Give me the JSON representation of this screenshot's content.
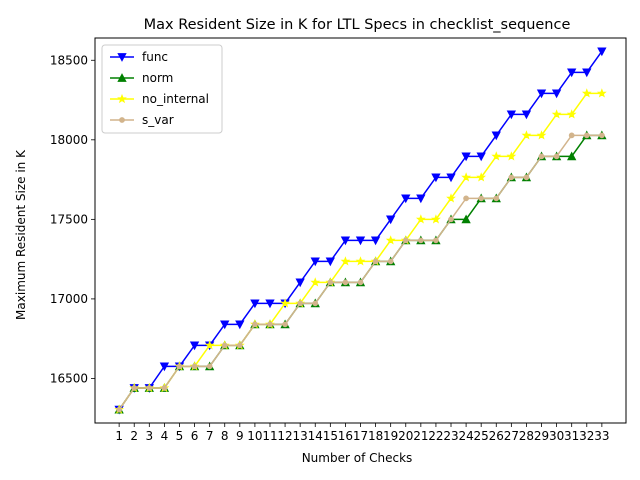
{
  "chart_data": {
    "type": "line",
    "title": "Max Resident Size in K for LTL Specs in checklist_sequence",
    "xlabel": "Number of Checks",
    "ylabel": "Maximum Resident Size in K",
    "x": [
      1,
      2,
      3,
      4,
      5,
      6,
      7,
      8,
      9,
      10,
      11,
      12,
      13,
      14,
      15,
      16,
      17,
      18,
      19,
      20,
      21,
      22,
      23,
      24,
      25,
      26,
      27,
      28,
      29,
      30,
      31,
      32,
      33
    ],
    "xlim": [
      -0.6,
      34.6
    ],
    "ylim": [
      16220,
      18640
    ],
    "yticks": [
      16500,
      17000,
      17500,
      18000,
      18500
    ],
    "grid": false,
    "legend": "top-left",
    "series": [
      {
        "name": "func",
        "color": "#0000ff",
        "marker": "triangle-down",
        "values": [
          16304,
          16440,
          16440,
          16576,
          16576,
          16708,
          16708,
          16840,
          16840,
          16972,
          16972,
          16972,
          17104,
          17236,
          17236,
          17368,
          17368,
          17368,
          17500,
          17632,
          17632,
          17764,
          17764,
          17896,
          17896,
          18028,
          18160,
          18160,
          18292,
          18292,
          18424,
          18424,
          18556
        ]
      },
      {
        "name": "norm",
        "color": "#008000",
        "marker": "triangle-up",
        "values": [
          16304,
          16440,
          16440,
          16440,
          16576,
          16576,
          16576,
          16708,
          16708,
          16840,
          16840,
          16840,
          16972,
          16972,
          17104,
          17104,
          17104,
          17236,
          17236,
          17368,
          17368,
          17368,
          17500,
          17500,
          17632,
          17632,
          17764,
          17764,
          17896,
          17896,
          17896,
          18028,
          18028
        ]
      },
      {
        "name": "no_internal",
        "color": "#ffff00",
        "marker": "star",
        "values": [
          16304,
          16440,
          16440,
          16440,
          16576,
          16576,
          16708,
          16708,
          16708,
          16840,
          16840,
          16972,
          16972,
          17104,
          17104,
          17236,
          17236,
          17236,
          17368,
          17368,
          17500,
          17500,
          17632,
          17764,
          17764,
          17896,
          17896,
          18028,
          18028,
          18160,
          18160,
          18292,
          18292
        ]
      },
      {
        "name": "s_var",
        "color": "#d2b48c",
        "marker": "circle",
        "values": [
          16304,
          16440,
          16440,
          16440,
          16576,
          16576,
          16576,
          16708,
          16708,
          16840,
          16840,
          16840,
          16972,
          16972,
          17104,
          17104,
          17104,
          17236,
          17236,
          17368,
          17368,
          17368,
          17500,
          17632,
          17632,
          17632,
          17764,
          17764,
          17896,
          17896,
          18028,
          18028,
          18028
        ]
      }
    ]
  }
}
